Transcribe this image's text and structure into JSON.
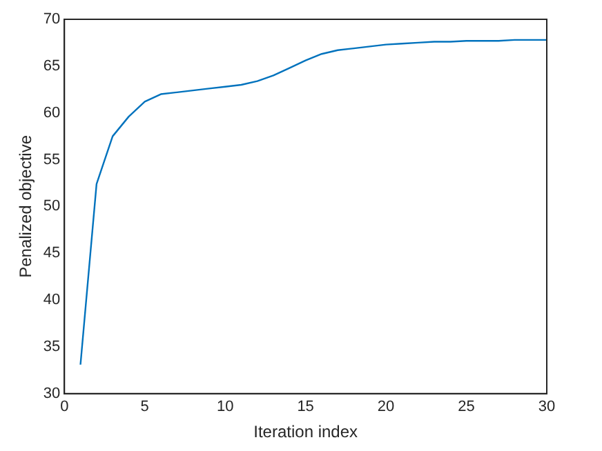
{
  "chart_data": {
    "type": "line",
    "xlabel": "Iteration index",
    "ylabel": "Penalized objective",
    "x": [
      1,
      2,
      3,
      4,
      5,
      6,
      7,
      8,
      9,
      10,
      11,
      12,
      13,
      14,
      15,
      16,
      17,
      18,
      19,
      20,
      21,
      22,
      23,
      24,
      25,
      26,
      27,
      28,
      29,
      30
    ],
    "series": [
      {
        "color": "#0072bd",
        "values": [
          33.1,
          52.4,
          57.5,
          59.6,
          61.2,
          62.0,
          62.2,
          62.4,
          62.6,
          62.8,
          63.0,
          63.4,
          64.0,
          64.8,
          65.6,
          66.3,
          66.7,
          66.9,
          67.1,
          67.3,
          67.4,
          67.5,
          67.6,
          67.6,
          67.7,
          67.7,
          67.7,
          67.8,
          67.8,
          67.8
        ]
      }
    ],
    "xlim": [
      0,
      30
    ],
    "xticks": [
      0,
      5,
      10,
      15,
      20,
      25,
      30
    ],
    "ylim": [
      30,
      70
    ],
    "yticks": [
      30,
      35,
      40,
      45,
      50,
      55,
      60,
      65,
      70
    ],
    "grid": false,
    "legend": false,
    "marker": "none",
    "line_style": "solid"
  }
}
